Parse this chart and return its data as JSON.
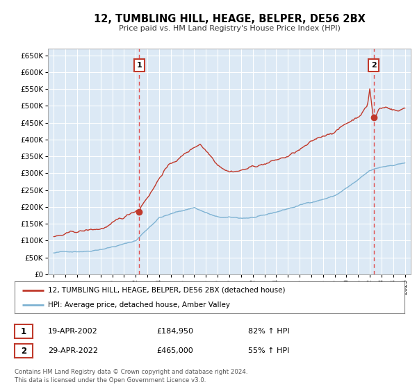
{
  "title": "12, TUMBLING HILL, HEAGE, BELPER, DE56 2BX",
  "subtitle": "Price paid vs. HM Land Registry's House Price Index (HPI)",
  "background_color": "#ffffff",
  "plot_bg_color": "#dce9f5",
  "ylim": [
    0,
    670000
  ],
  "yticks": [
    0,
    50000,
    100000,
    150000,
    200000,
    250000,
    300000,
    350000,
    400000,
    450000,
    500000,
    550000,
    600000,
    650000
  ],
  "xlim_start": 1994.5,
  "xlim_end": 2025.5,
  "marker1_x": 2002.3,
  "marker1_y": 184950,
  "marker2_x": 2022.33,
  "marker2_y": 465000,
  "vline1_x": 2002.3,
  "vline2_x": 2022.33,
  "legend_line1": "12, TUMBLING HILL, HEAGE, BELPER, DE56 2BX (detached house)",
  "legend_line2": "HPI: Average price, detached house, Amber Valley",
  "line1_color": "#c0392b",
  "line2_color": "#7fb3d3",
  "vline_color": "#e05050",
  "table_row1": [
    "1",
    "19-APR-2002",
    "£184,950",
    "82% ↑ HPI"
  ],
  "table_row2": [
    "2",
    "29-APR-2022",
    "£465,000",
    "55% ↑ HPI"
  ],
  "footer_text": "Contains HM Land Registry data © Crown copyright and database right 2024.\nThis data is licensed under the Open Government Licence v3.0.",
  "grid_color": "#ffffff",
  "xticks": [
    1995,
    1996,
    1997,
    1998,
    1999,
    2000,
    2001,
    2002,
    2003,
    2004,
    2005,
    2006,
    2007,
    2008,
    2009,
    2010,
    2011,
    2012,
    2013,
    2014,
    2015,
    2016,
    2017,
    2018,
    2019,
    2020,
    2021,
    2022,
    2023,
    2024,
    2025
  ]
}
